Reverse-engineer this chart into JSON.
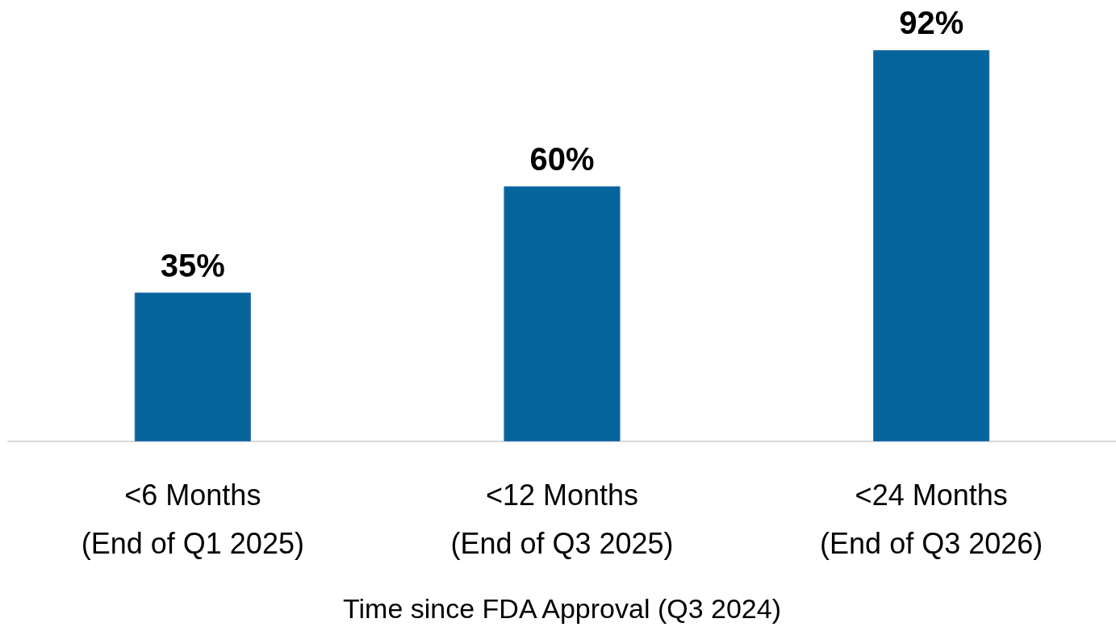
{
  "chart_data": {
    "type": "bar",
    "xlabel": "Time since FDA Approval (Q3 2024)",
    "categories": [
      "<6 Months\n(End of Q1 2025)",
      "<12 Months\n(End of Q3 2025)",
      "<24 Months\n(End of Q3 2026)"
    ],
    "values": [
      35,
      60,
      92
    ],
    "color": "#05659b",
    "value_labels": [
      "35%",
      "60%",
      "92%"
    ]
  }
}
